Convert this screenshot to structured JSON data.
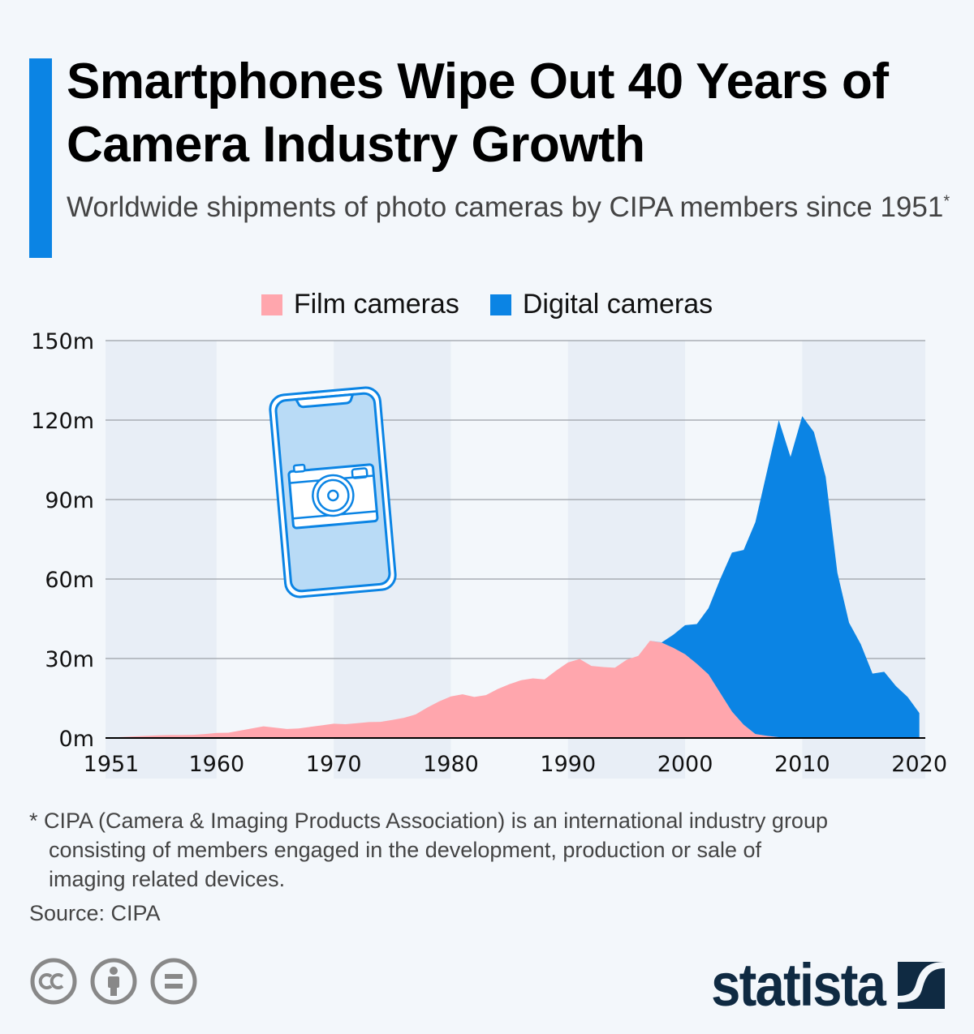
{
  "header": {
    "title": "Smartphones Wipe Out 40 Years of Camera Industry Growth",
    "subtitle": "Worldwide shipments of photo cameras by CIPA members since 1951",
    "subtitle_marker": "*",
    "accent_color": "#0b84e4"
  },
  "chart_data": {
    "type": "area",
    "stacked": true,
    "title": "",
    "xlabel": "",
    "ylabel": "",
    "x_ticks": [
      "1951",
      "1960",
      "1970",
      "1980",
      "1990",
      "2000",
      "2010",
      "2020"
    ],
    "y_ticks": [
      "0m",
      "30m",
      "60m",
      "90m",
      "120m",
      "150m"
    ],
    "ylim": [
      0,
      150
    ],
    "xlim": [
      1951,
      2020
    ],
    "unit": "million units",
    "grid": true,
    "legend_position": "top",
    "x": [
      1951,
      1952,
      1953,
      1954,
      1955,
      1956,
      1957,
      1958,
      1959,
      1960,
      1961,
      1962,
      1963,
      1964,
      1965,
      1966,
      1967,
      1968,
      1969,
      1970,
      1971,
      1972,
      1973,
      1974,
      1975,
      1976,
      1977,
      1978,
      1979,
      1980,
      1981,
      1982,
      1983,
      1984,
      1985,
      1986,
      1987,
      1988,
      1989,
      1990,
      1991,
      1992,
      1993,
      1994,
      1995,
      1996,
      1997,
      1998,
      1999,
      2000,
      2001,
      2002,
      2003,
      2004,
      2005,
      2006,
      2007,
      2008,
      2009,
      2010,
      2011,
      2012,
      2013,
      2014,
      2015,
      2016,
      2017,
      2018,
      2019,
      2020
    ],
    "series": [
      {
        "name": "Film cameras",
        "color": "#ffa6ad",
        "values": [
          0.2,
          0.4,
          0.6,
          0.8,
          1.0,
          1.1,
          1.1,
          1.2,
          1.5,
          1.9,
          2.0,
          2.8,
          3.6,
          4.4,
          3.9,
          3.4,
          3.6,
          4.2,
          4.8,
          5.4,
          5.2,
          5.6,
          6.0,
          6.1,
          6.8,
          7.6,
          8.9,
          11.5,
          13.8,
          15.7,
          16.5,
          15.5,
          16.2,
          18.5,
          20.3,
          21.8,
          22.5,
          22.1,
          25.5,
          28.5,
          29.8,
          27.2,
          26.8,
          26.5,
          29.5,
          31.0,
          36.7,
          36.0,
          34.0,
          31.6,
          28.0,
          24.0,
          17.0,
          10.0,
          5.0,
          1.5,
          0.8,
          0.3,
          0.1,
          0,
          0,
          0,
          0,
          0,
          0,
          0,
          0,
          0,
          0,
          0
        ]
      },
      {
        "name": "Digital cameras",
        "color": "#0b84e4",
        "values": [
          0,
          0,
          0,
          0,
          0,
          0,
          0,
          0,
          0,
          0,
          0,
          0,
          0,
          0,
          0,
          0,
          0,
          0,
          0,
          0,
          0,
          0,
          0,
          0,
          0,
          0,
          0,
          0,
          0,
          0,
          0,
          0,
          0,
          0,
          0,
          0,
          0,
          0,
          0,
          0,
          0,
          0,
          0,
          0,
          0,
          0,
          0,
          0.1,
          5.0,
          11.0,
          15.0,
          25.0,
          43.0,
          60.0,
          66.0,
          80.0,
          100.0,
          119.7,
          106.0,
          121.5,
          115.5,
          98.6,
          62.4,
          43.5,
          35.4,
          24.3,
          25.0,
          19.6,
          15.5,
          9.4
        ]
      }
    ]
  },
  "legend": {
    "items": [
      {
        "label": "Film cameras",
        "color": "#ffa6ad"
      },
      {
        "label": "Digital cameras",
        "color": "#0b84e4"
      }
    ]
  },
  "illustration": {
    "icon": "smartphone-camera-icon"
  },
  "footer": {
    "footnote_lines": [
      "* CIPA (Camera & Imaging Products Association) is an international industry group",
      "consisting of members engaged in the development, production or sale of",
      "imaging related devices."
    ],
    "source": "Source: CIPA",
    "license_icons": [
      "creative-commons-icon",
      "attribution-icon",
      "no-derivatives-icon"
    ],
    "brand": "statista"
  }
}
